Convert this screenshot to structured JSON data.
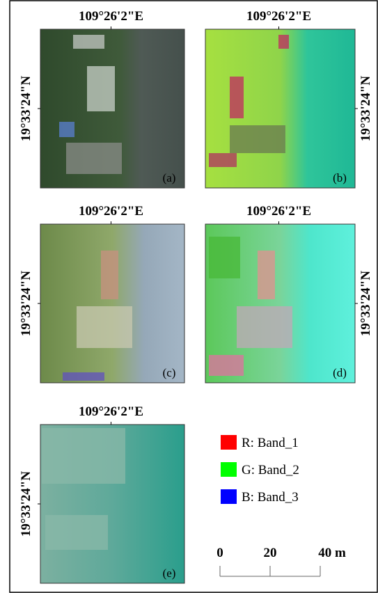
{
  "panels": [
    {
      "label": "(a)",
      "lon": "109°26'2\"E",
      "lat": "19°33'24\"N"
    },
    {
      "label": "(b)",
      "lon": "109°26'2\"E",
      "lat": "19°33'24\"N"
    },
    {
      "label": "(c)",
      "lon": "109°26'2\"E",
      "lat": "19°33'24\"N"
    },
    {
      "label": "(d)",
      "lon": "109°26'2\"E",
      "lat": "19°33'24\"N"
    },
    {
      "label": "(e)",
      "lon": "109°26'2\"E",
      "lat": "19°33'24\"N"
    }
  ],
  "legend": [
    {
      "text": "R: Band_1",
      "color": "#ff0000"
    },
    {
      "text": "G: Band_2",
      "color": "#00ff00"
    },
    {
      "text": "B: Band_3",
      "color": "#0000ff"
    }
  ],
  "scale_bar": {
    "labels": [
      "0",
      "20",
      "40 m"
    ]
  }
}
